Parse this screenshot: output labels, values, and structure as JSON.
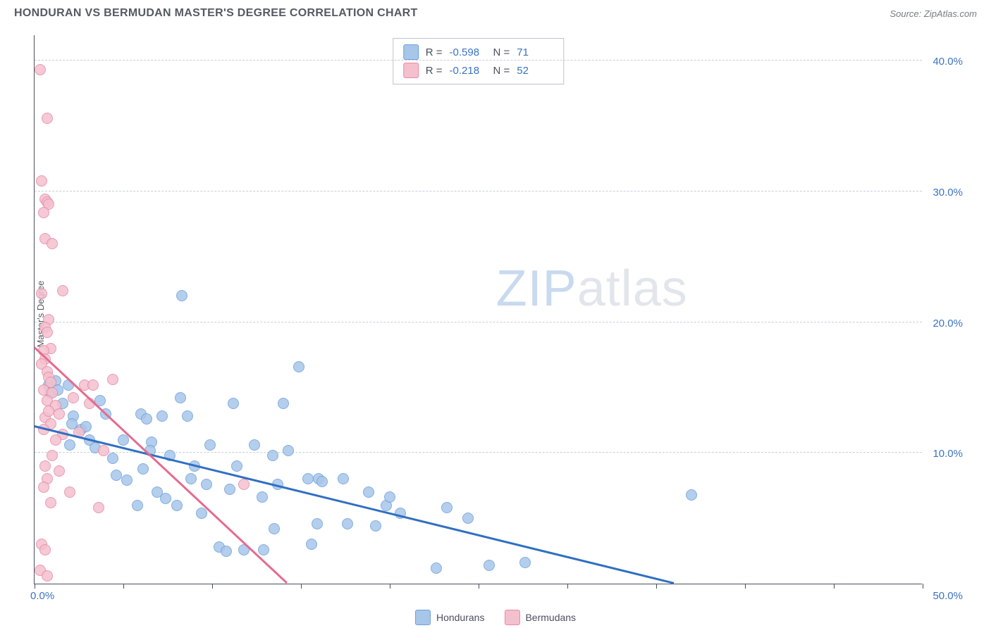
{
  "title": "HONDURAN VS BERMUDAN MASTER'S DEGREE CORRELATION CHART",
  "source": "Source: ZipAtlas.com",
  "watermark_zip": "ZIP",
  "watermark_atlas": "atlas",
  "ylabel": "Master's Degree",
  "chart": {
    "type": "scatter",
    "xlim": [
      0,
      50
    ],
    "ylim": [
      0,
      42
    ],
    "grid_color": "#c8cdd6",
    "axis_color": "#4a5060",
    "background_color": "#ffffff",
    "label_color": "#3a73c4",
    "y_ticks": [
      10,
      20,
      30,
      40
    ],
    "y_tick_labels": [
      "10.0%",
      "20.0%",
      "30.0%",
      "40.0%"
    ],
    "x_ticks": [
      0,
      5,
      10,
      15,
      20,
      25,
      30,
      35,
      40,
      45,
      50
    ],
    "x_min_label": "0.0%",
    "x_max_label": "50.0%",
    "marker_radius": 8,
    "series": [
      {
        "name": "Hondurans",
        "color_fill": "#a8c6ea",
        "color_stroke": "#6fa0d9",
        "reg_color": "#2f6fc2",
        "R": "-0.598",
        "N": "71",
        "reg_line": {
          "x1": 0,
          "y1": 12.0,
          "x2": 36.0,
          "y2": 0
        },
        "points": [
          [
            0.8,
            15.2
          ],
          [
            0.9,
            14.6
          ],
          [
            1.2,
            15.5
          ],
          [
            1.3,
            14.8
          ],
          [
            1.6,
            13.8
          ],
          [
            1.9,
            15.2
          ],
          [
            2.2,
            12.8
          ],
          [
            2.0,
            10.6
          ],
          [
            2.1,
            12.2
          ],
          [
            2.6,
            11.8
          ],
          [
            2.9,
            12.0
          ],
          [
            3.1,
            11.0
          ],
          [
            3.4,
            10.4
          ],
          [
            3.7,
            14.0
          ],
          [
            4.0,
            13.0
          ],
          [
            4.4,
            9.6
          ],
          [
            4.6,
            8.3
          ],
          [
            5.0,
            11.0
          ],
          [
            5.2,
            7.9
          ],
          [
            5.8,
            6.0
          ],
          [
            6.0,
            13.0
          ],
          [
            6.1,
            8.8
          ],
          [
            6.3,
            12.6
          ],
          [
            6.6,
            10.8
          ],
          [
            6.9,
            7.0
          ],
          [
            7.2,
            12.8
          ],
          [
            7.4,
            6.5
          ],
          [
            7.6,
            9.8
          ],
          [
            8.0,
            6.0
          ],
          [
            8.2,
            14.2
          ],
          [
            8.3,
            22.0
          ],
          [
            8.6,
            12.8
          ],
          [
            8.8,
            8.0
          ],
          [
            9.0,
            9.0
          ],
          [
            9.4,
            5.4
          ],
          [
            9.7,
            7.6
          ],
          [
            9.9,
            10.6
          ],
          [
            10.4,
            2.8
          ],
          [
            10.8,
            2.5
          ],
          [
            11.0,
            7.2
          ],
          [
            11.2,
            13.8
          ],
          [
            11.4,
            9.0
          ],
          [
            11.8,
            2.6
          ],
          [
            12.4,
            10.6
          ],
          [
            12.8,
            6.6
          ],
          [
            12.9,
            2.6
          ],
          [
            13.4,
            9.8
          ],
          [
            13.5,
            4.2
          ],
          [
            14.0,
            13.8
          ],
          [
            14.3,
            10.2
          ],
          [
            14.9,
            16.6
          ],
          [
            15.4,
            8.0
          ],
          [
            15.6,
            3.0
          ],
          [
            15.9,
            4.6
          ],
          [
            16.0,
            8.0
          ],
          [
            16.2,
            7.8
          ],
          [
            17.4,
            8.0
          ],
          [
            17.6,
            4.6
          ],
          [
            18.8,
            7.0
          ],
          [
            19.2,
            4.4
          ],
          [
            19.8,
            6.0
          ],
          [
            20.0,
            6.6
          ],
          [
            20.6,
            5.4
          ],
          [
            22.6,
            1.2
          ],
          [
            23.2,
            5.8
          ],
          [
            24.4,
            5.0
          ],
          [
            25.6,
            1.4
          ],
          [
            27.6,
            1.6
          ],
          [
            37.0,
            6.8
          ],
          [
            13.7,
            7.6
          ],
          [
            6.5,
            10.2
          ]
        ]
      },
      {
        "name": "Bermudans",
        "color_fill": "#f4c0ce",
        "color_stroke": "#e78aa5",
        "reg_color": "#e56b8f",
        "R": "-0.218",
        "N": "52",
        "reg_line": {
          "x1": 0,
          "y1": 18.0,
          "x2": 14.2,
          "y2": 0
        },
        "points": [
          [
            0.3,
            39.3
          ],
          [
            0.7,
            35.6
          ],
          [
            0.4,
            30.8
          ],
          [
            0.6,
            29.4
          ],
          [
            0.7,
            29.2
          ],
          [
            0.8,
            29.0
          ],
          [
            0.5,
            28.4
          ],
          [
            0.6,
            26.4
          ],
          [
            1.0,
            26.0
          ],
          [
            0.4,
            22.2
          ],
          [
            1.6,
            22.4
          ],
          [
            0.8,
            20.2
          ],
          [
            0.6,
            19.6
          ],
          [
            0.7,
            19.2
          ],
          [
            0.9,
            18.0
          ],
          [
            0.5,
            17.8
          ],
          [
            0.6,
            17.2
          ],
          [
            0.4,
            16.8
          ],
          [
            0.7,
            16.2
          ],
          [
            0.8,
            15.8
          ],
          [
            0.9,
            15.4
          ],
          [
            0.5,
            14.8
          ],
          [
            1.0,
            14.6
          ],
          [
            0.7,
            14.0
          ],
          [
            1.2,
            13.6
          ],
          [
            1.4,
            13.0
          ],
          [
            0.6,
            12.7
          ],
          [
            0.9,
            12.2
          ],
          [
            0.5,
            11.8
          ],
          [
            1.6,
            11.4
          ],
          [
            2.2,
            14.2
          ],
          [
            2.5,
            11.6
          ],
          [
            2.8,
            15.2
          ],
          [
            3.1,
            13.8
          ],
          [
            3.3,
            15.2
          ],
          [
            3.9,
            10.2
          ],
          [
            4.4,
            15.6
          ],
          [
            1.0,
            9.8
          ],
          [
            0.6,
            9.0
          ],
          [
            1.4,
            8.6
          ],
          [
            0.7,
            8.0
          ],
          [
            0.5,
            7.4
          ],
          [
            2.0,
            7.0
          ],
          [
            0.9,
            6.2
          ],
          [
            3.6,
            5.8
          ],
          [
            0.4,
            3.0
          ],
          [
            0.6,
            2.6
          ],
          [
            0.3,
            1.0
          ],
          [
            0.7,
            0.6
          ],
          [
            11.8,
            7.6
          ],
          [
            1.2,
            11.0
          ],
          [
            0.8,
            13.2
          ]
        ]
      }
    ]
  },
  "stats_labels": {
    "R": "R =",
    "N": "N ="
  },
  "legend_labels": [
    "Hondurans",
    "Bermudans"
  ]
}
